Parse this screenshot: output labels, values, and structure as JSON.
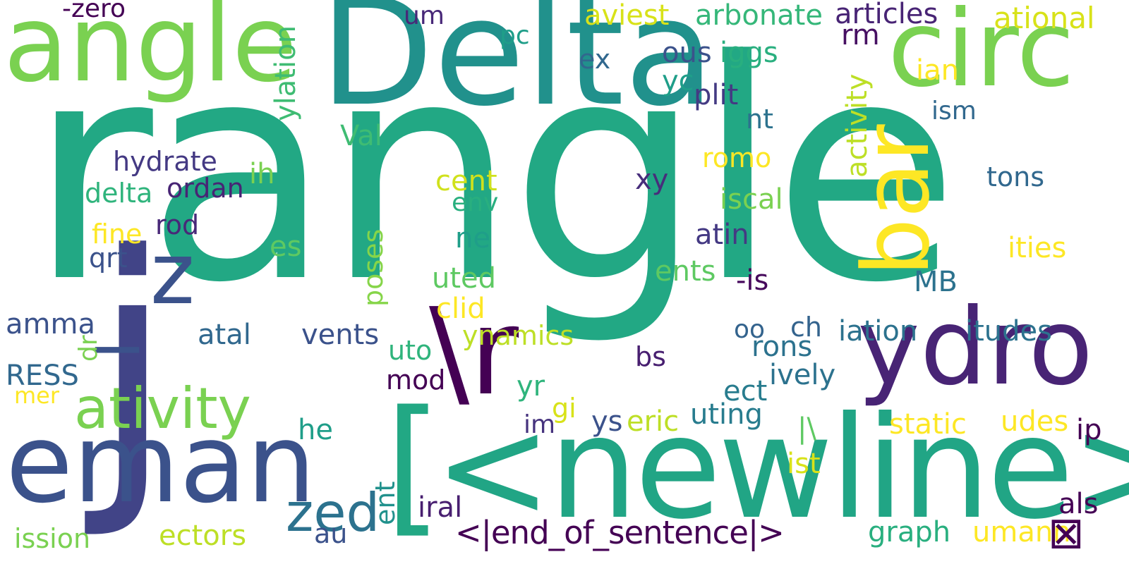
{
  "palette": {
    "background": "#ffffff",
    "purple": "#440154",
    "indigo": "#472d7b",
    "blue": "#3b528b",
    "steel": "#2c728e",
    "teal": "#21918c",
    "sea": "#28ae80",
    "green": "#5ec962",
    "lime": "#addc30",
    "yellow": "#fde725"
  },
  "words": [
    {
      "id": "rangle",
      "text": "rangle",
      "color": "#22a884"
    },
    {
      "id": "j",
      "text": "j",
      "color": "#414487"
    },
    {
      "id": "delta-big",
      "text": "Delta",
      "color": "#21918c"
    },
    {
      "id": "newline",
      "text": "<newline>",
      "color": "#21a585"
    },
    {
      "id": "bracket",
      "text": "[",
      "color": "#22a884"
    },
    {
      "id": "circ",
      "text": "circ",
      "color": "#7ad151"
    },
    {
      "id": "angle",
      "text": "angle",
      "color": "#7ad151"
    },
    {
      "id": "eman",
      "text": "eman",
      "color": "#3b528b"
    },
    {
      "id": "ydro",
      "text": "ydro",
      "color": "#482475"
    },
    {
      "id": "backslash-r",
      "text": "\\r",
      "color": "#440154"
    },
    {
      "id": "bar",
      "text": "bar",
      "color": "#fde725"
    },
    {
      "id": "ativity",
      "text": "ativity",
      "color": "#7ad151"
    },
    {
      "id": "z",
      "text": "z",
      "color": "#3b528b"
    },
    {
      "id": "underscore",
      "text": "_",
      "color": "#3b528b"
    },
    {
      "id": "zed",
      "text": "zed",
      "color": "#2c728e"
    },
    {
      "id": "end-of-sentence",
      "text": "<|end_of_sentence|>",
      "color": "#440154"
    },
    {
      "id": "ational",
      "text": "ational",
      "color": "#d8e219"
    },
    {
      "id": "articles",
      "text": "articles",
      "color": "#482475"
    },
    {
      "id": "arbonate",
      "text": "arbonate",
      "color": "#35b779"
    },
    {
      "id": "aviest",
      "text": "aviest",
      "color": "#d8e219"
    },
    {
      "id": "minus-zero",
      "text": "-zero",
      "color": "#440154"
    },
    {
      "id": "ylation",
      "text": "ylation",
      "color": "#3fbc73"
    },
    {
      "id": "um",
      "text": "um",
      "color": "#482878"
    },
    {
      "id": "pc",
      "text": "pc",
      "color": "#1f9e89"
    },
    {
      "id": "ex",
      "text": "ex",
      "color": "#31688e"
    },
    {
      "id": "ous",
      "text": "ous",
      "color": "#3b528b"
    },
    {
      "id": "iggs",
      "text": "iggs",
      "color": "#29af7f"
    },
    {
      "id": "rm",
      "text": "rm",
      "color": "#471063"
    },
    {
      "id": "ian",
      "text": "ian",
      "color": "#fde725"
    },
    {
      "id": "yc",
      "text": "yc",
      "color": "#1f9e89"
    },
    {
      "id": "plit",
      "text": "plit",
      "color": "#443a83"
    },
    {
      "id": "activity",
      "text": "activity",
      "color": "#bddf26"
    },
    {
      "id": "ism",
      "text": "ism",
      "color": "#31688e"
    },
    {
      "id": "nt",
      "text": "nt",
      "color": "#2c728e"
    },
    {
      "id": "val",
      "text": "Val",
      "color": "#3fbc73"
    },
    {
      "id": "hydrate",
      "text": "hydrate",
      "color": "#443983"
    },
    {
      "id": "romo",
      "text": "romo",
      "color": "#fde725"
    },
    {
      "id": "tons",
      "text": "tons",
      "color": "#31688e"
    },
    {
      "id": "ih",
      "text": "ih",
      "color": "#7ad151"
    },
    {
      "id": "delta-small",
      "text": "delta",
      "color": "#2fb47c"
    },
    {
      "id": "ordan",
      "text": "ordan",
      "color": "#482475"
    },
    {
      "id": "cent",
      "text": "cent",
      "color": "#d0e11c"
    },
    {
      "id": "xy",
      "text": "xy",
      "color": "#472d7b"
    },
    {
      "id": "env",
      "text": "env",
      "color": "#29af7f"
    },
    {
      "id": "iscal",
      "text": "iscal",
      "color": "#7ad151"
    },
    {
      "id": "fine",
      "text": "fine",
      "color": "#fde725"
    },
    {
      "id": "rod",
      "text": "rod",
      "color": "#482878"
    },
    {
      "id": "ne",
      "text": "ne",
      "color": "#1f9e89"
    },
    {
      "id": "atin",
      "text": "atin",
      "color": "#443983"
    },
    {
      "id": "es",
      "text": "es",
      "color": "#5ec962"
    },
    {
      "id": "qrt",
      "text": "qrt",
      "color": "#3b528b"
    },
    {
      "id": "poses",
      "text": "poses",
      "color": "#86d549"
    },
    {
      "id": "ities",
      "text": "ities",
      "color": "#fde725"
    },
    {
      "id": "ents",
      "text": "ents",
      "color": "#5ec962"
    },
    {
      "id": "uted",
      "text": "uted",
      "color": "#5ec962"
    },
    {
      "id": "minus-is",
      "text": "-is",
      "color": "#46085c"
    },
    {
      "id": "mb",
      "text": "MB",
      "color": "#2c728e"
    },
    {
      "id": "clid",
      "text": "clid",
      "color": "#fde725"
    },
    {
      "id": "amma",
      "text": "amma",
      "color": "#3b528b"
    },
    {
      "id": "atal",
      "text": "atal",
      "color": "#31688e"
    },
    {
      "id": "vents",
      "text": "vents",
      "color": "#3b528b"
    },
    {
      "id": "oo",
      "text": "oo",
      "color": "#33638d"
    },
    {
      "id": "ch",
      "text": "ch",
      "color": "#33638d"
    },
    {
      "id": "iation",
      "text": "iation",
      "color": "#2c728e"
    },
    {
      "id": "itudes",
      "text": "itudes",
      "color": "#2c728e"
    },
    {
      "id": "ynamics",
      "text": "ynamics",
      "color": "#bddf26"
    },
    {
      "id": "dr",
      "text": "dr",
      "color": "#7ad151"
    },
    {
      "id": "uto",
      "text": "uto",
      "color": "#2fb47c"
    },
    {
      "id": "rons",
      "text": "rons",
      "color": "#2c728e"
    },
    {
      "id": "bs",
      "text": "bs",
      "color": "#481f70"
    },
    {
      "id": "ress",
      "text": "RESS",
      "color": "#31688e"
    },
    {
      "id": "ively",
      "text": "ively",
      "color": "#2c728e"
    },
    {
      "id": "mod",
      "text": "mod",
      "color": "#440154"
    },
    {
      "id": "ect",
      "text": "ect",
      "color": "#287c8e"
    },
    {
      "id": "yr",
      "text": "yr",
      "color": "#2fb47c"
    },
    {
      "id": "mer",
      "text": "mer",
      "color": "#fde725"
    },
    {
      "id": "gi",
      "text": "gi",
      "color": "#d8e219"
    },
    {
      "id": "uting",
      "text": "uting",
      "color": "#287c8e"
    },
    {
      "id": "ys",
      "text": "ys",
      "color": "#3b528b"
    },
    {
      "id": "eric",
      "text": "eric",
      "color": "#bddf26"
    },
    {
      "id": "static",
      "text": "static",
      "color": "#fde725"
    },
    {
      "id": "udes",
      "text": "udes",
      "color": "#fde725"
    },
    {
      "id": "im",
      "text": "im",
      "color": "#46337e"
    },
    {
      "id": "pipe-backslash",
      "text": "|\\",
      "color": "#5ec962"
    },
    {
      "id": "ip",
      "text": "ip",
      "color": "#440154"
    },
    {
      "id": "he",
      "text": "he",
      "color": "#1f9e89"
    },
    {
      "id": "ist",
      "text": "ist",
      "color": "#d8e219"
    },
    {
      "id": "ent",
      "text": "ent",
      "color": "#21918c"
    },
    {
      "id": "iral",
      "text": "iral",
      "color": "#481f70"
    },
    {
      "id": "als",
      "text": "als",
      "color": "#440154"
    },
    {
      "id": "ission",
      "text": "ission",
      "color": "#7ad151"
    },
    {
      "id": "au",
      "text": "au",
      "color": "#3b528b"
    },
    {
      "id": "ectors",
      "text": "ectors",
      "color": "#bddf26"
    },
    {
      "id": "graph",
      "text": "graph",
      "color": "#29af7f"
    },
    {
      "id": "umann",
      "text": "umann",
      "color": "#fde725"
    },
    {
      "id": "missing-glyph",
      "text": "⊠",
      "color": "#440154"
    }
  ]
}
